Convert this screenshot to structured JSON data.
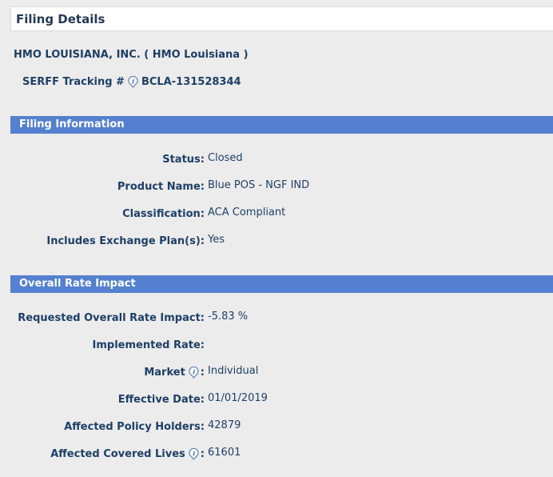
{
  "header": {
    "title": "Filing Details"
  },
  "company": "HMO LOUISIANA, INC. ( HMO Louisiana )",
  "serff": {
    "label": "SERFF Tracking #",
    "value": "BCLA-131528344"
  },
  "filing_information": {
    "title": "Filing Information",
    "rows": [
      {
        "label": "Status",
        "value": "Closed"
      },
      {
        "label": "Product Name",
        "value": "Blue POS - NGF IND"
      },
      {
        "label": "Classification",
        "value": "ACA Compliant"
      },
      {
        "label": "Includes Exchange Plan(s)",
        "value": "Yes"
      }
    ]
  },
  "rate_impact": {
    "title": "Overall Rate Impact",
    "rows": [
      {
        "label": "Requested Overall Rate Impact",
        "value": "-5.83 %"
      },
      {
        "label": "Implemented Rate",
        "value": ""
      },
      {
        "label": "Market",
        "value": "Individual",
        "info": true
      },
      {
        "label": "Effective Date",
        "value": "01/01/2019"
      },
      {
        "label": "Affected Policy Holders",
        "value": "42879"
      },
      {
        "label": "Affected Covered Lives",
        "value": "61601",
        "info": true
      }
    ]
  },
  "colon": ":"
}
